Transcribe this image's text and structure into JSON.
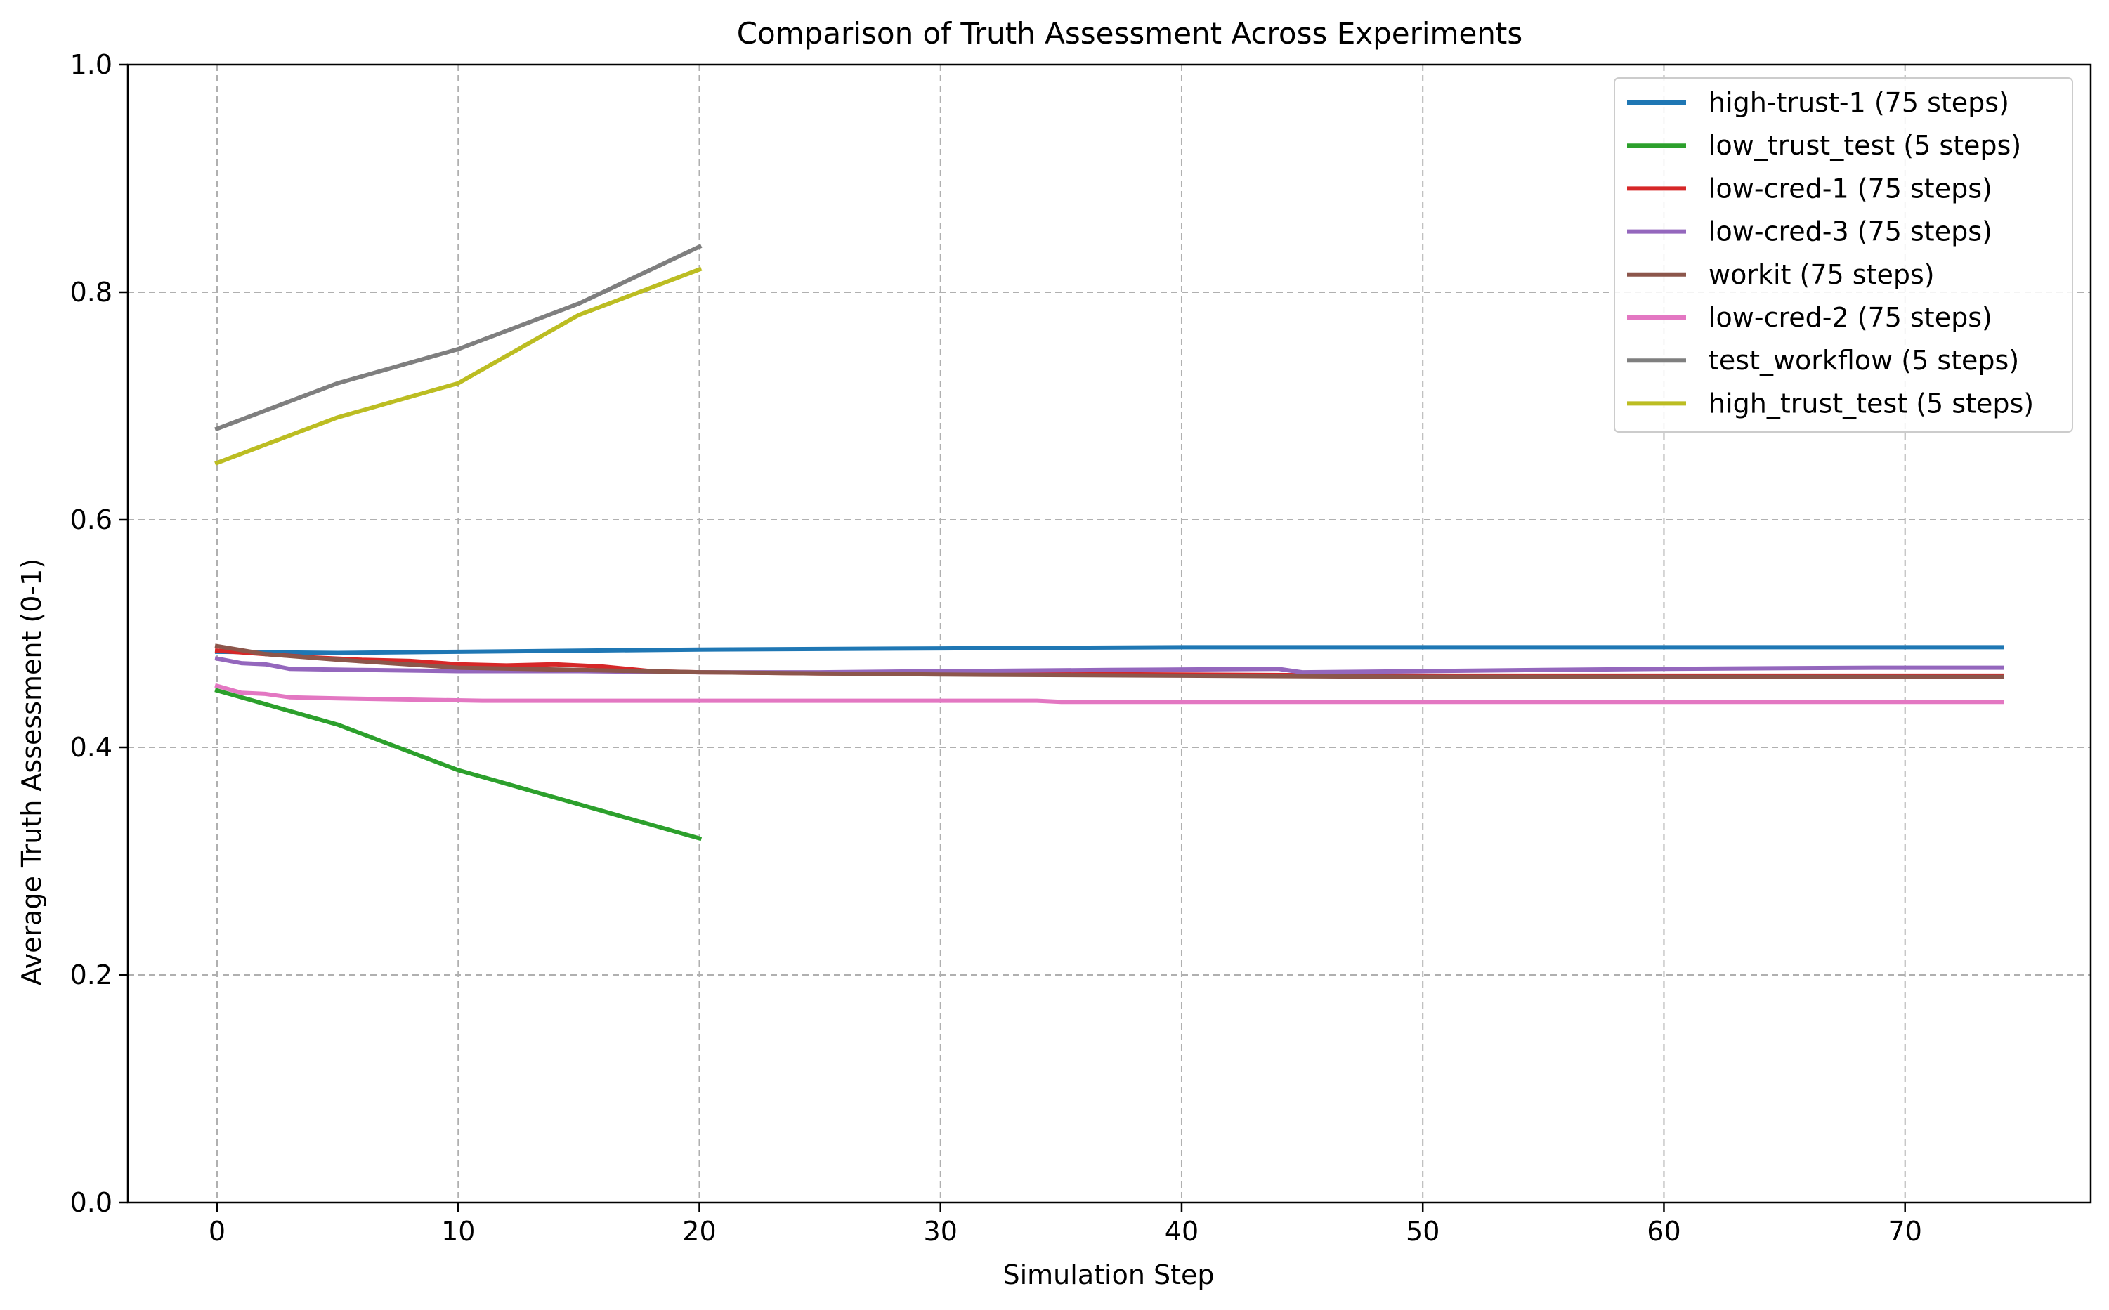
{
  "chart_data": {
    "type": "line",
    "title": "Comparison of Truth Assessment Across Experiments",
    "xlabel": "Simulation Step",
    "ylabel": "Average Truth Assessment (0-1)",
    "xlim": [
      -3.7,
      77.7
    ],
    "ylim": [
      0.0,
      1.0
    ],
    "xticks": [
      0,
      10,
      20,
      30,
      40,
      50,
      60,
      70
    ],
    "yticks": [
      0.0,
      0.2,
      0.4,
      0.6,
      0.8,
      1.0
    ],
    "xtick_labels": [
      "0",
      "10",
      "20",
      "30",
      "40",
      "50",
      "60",
      "70"
    ],
    "ytick_labels": [
      "0.0",
      "0.2",
      "0.4",
      "0.6",
      "0.8",
      "1.0"
    ],
    "grid": true,
    "legend_position": "top-right",
    "series": [
      {
        "name": "high-trust-1 (75 steps)",
        "color": "#1f77b4",
        "points": [
          [
            0,
            0.484
          ],
          [
            5,
            0.483
          ],
          [
            10,
            0.484
          ],
          [
            15,
            0.485
          ],
          [
            20,
            0.486
          ],
          [
            30,
            0.487
          ],
          [
            40,
            0.488
          ],
          [
            50,
            0.488
          ],
          [
            60,
            0.488
          ],
          [
            74,
            0.488
          ]
        ]
      },
      {
        "name": "low_trust_test (5 steps)",
        "color": "#2ca02c",
        "points": [
          [
            0,
            0.45
          ],
          [
            5,
            0.42
          ],
          [
            10,
            0.38
          ],
          [
            15,
            0.35
          ],
          [
            20,
            0.32
          ]
        ]
      },
      {
        "name": "low-cred-1 (75 steps)",
        "color": "#d62728",
        "points": [
          [
            0,
            0.485
          ],
          [
            2,
            0.482
          ],
          [
            4,
            0.479
          ],
          [
            6,
            0.477
          ],
          [
            8,
            0.476
          ],
          [
            10,
            0.473
          ],
          [
            12,
            0.472
          ],
          [
            14,
            0.473
          ],
          [
            16,
            0.471
          ],
          [
            18,
            0.467
          ],
          [
            20,
            0.466
          ],
          [
            25,
            0.465
          ],
          [
            30,
            0.465
          ],
          [
            40,
            0.464
          ],
          [
            50,
            0.463
          ],
          [
            60,
            0.463
          ],
          [
            74,
            0.463
          ]
        ]
      },
      {
        "name": "low-cred-3 (75 steps)",
        "color": "#9467bd",
        "points": [
          [
            0,
            0.478
          ],
          [
            1,
            0.474
          ],
          [
            2,
            0.473
          ],
          [
            3,
            0.469
          ],
          [
            6,
            0.468
          ],
          [
            10,
            0.467
          ],
          [
            15,
            0.467
          ],
          [
            20,
            0.466
          ],
          [
            25,
            0.466
          ],
          [
            30,
            0.467
          ],
          [
            37,
            0.468
          ],
          [
            44,
            0.469
          ],
          [
            45,
            0.466
          ],
          [
            50,
            0.467
          ],
          [
            55,
            0.468
          ],
          [
            60,
            0.469
          ],
          [
            69,
            0.47
          ],
          [
            74,
            0.47
          ]
        ]
      },
      {
        "name": "workit (75 steps)",
        "color": "#8c564b",
        "points": [
          [
            0,
            0.489
          ],
          [
            2,
            0.482
          ],
          [
            5,
            0.477
          ],
          [
            10,
            0.47
          ],
          [
            15,
            0.468
          ],
          [
            20,
            0.466
          ],
          [
            30,
            0.464
          ],
          [
            40,
            0.463
          ],
          [
            50,
            0.462
          ],
          [
            60,
            0.462
          ],
          [
            74,
            0.462
          ]
        ]
      },
      {
        "name": "low-cred-2 (75 steps)",
        "color": "#e377c2",
        "points": [
          [
            0,
            0.454
          ],
          [
            1,
            0.448
          ],
          [
            2,
            0.447
          ],
          [
            3,
            0.444
          ],
          [
            5,
            0.443
          ],
          [
            8,
            0.442
          ],
          [
            11,
            0.441
          ],
          [
            20,
            0.441
          ],
          [
            34,
            0.441
          ],
          [
            35,
            0.44
          ],
          [
            48,
            0.44
          ],
          [
            60,
            0.44
          ],
          [
            74,
            0.44
          ]
        ]
      },
      {
        "name": "test_workflow (5 steps)",
        "color": "#7f7f7f",
        "points": [
          [
            0,
            0.68
          ],
          [
            5,
            0.72
          ],
          [
            10,
            0.75
          ],
          [
            15,
            0.79
          ],
          [
            20,
            0.84
          ]
        ]
      },
      {
        "name": "high_trust_test (5 steps)",
        "color": "#bcbd22",
        "points": [
          [
            0,
            0.65
          ],
          [
            5,
            0.69
          ],
          [
            10,
            0.72
          ],
          [
            15,
            0.78
          ],
          [
            20,
            0.82
          ]
        ]
      }
    ]
  }
}
